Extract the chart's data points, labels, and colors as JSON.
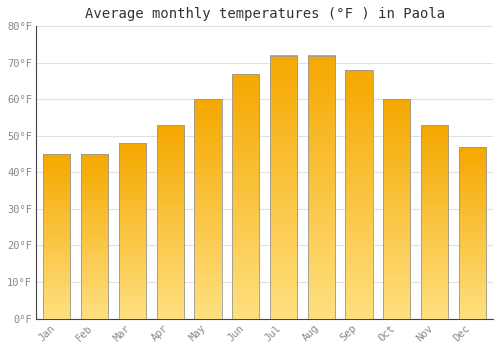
{
  "title": "Average monthly temperatures (°F ) in Paola",
  "months": [
    "Jan",
    "Feb",
    "Mar",
    "Apr",
    "May",
    "Jun",
    "Jul",
    "Aug",
    "Sep",
    "Oct",
    "Nov",
    "Dec"
  ],
  "values": [
    45,
    45,
    48,
    53,
    60,
    67,
    72,
    72,
    68,
    60,
    53,
    47
  ],
  "bar_color_top": "#F5A800",
  "bar_color_bottom": "#FFE080",
  "ylim": [
    0,
    80
  ],
  "yticks": [
    0,
    10,
    20,
    30,
    40,
    50,
    60,
    70,
    80
  ],
  "ytick_labels": [
    "0°F",
    "10°F",
    "20°F",
    "30°F",
    "40°F",
    "50°F",
    "60°F",
    "70°F",
    "80°F"
  ],
  "background_color": "#ffffff",
  "plot_bg_color": "#ffffff",
  "grid_color": "#e0e0e0",
  "title_fontsize": 10,
  "tick_fontsize": 7.5,
  "tick_color": "#888888",
  "bar_width": 0.72,
  "bar_edge_color": "#888888",
  "font_family": "monospace"
}
